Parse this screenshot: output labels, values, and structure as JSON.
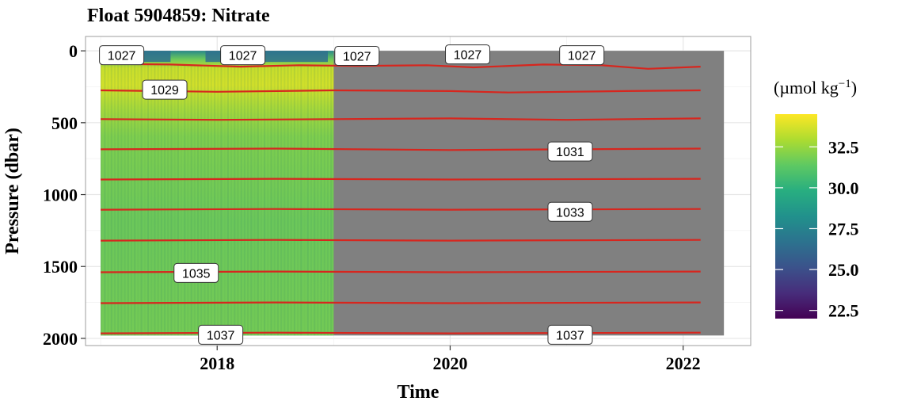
{
  "chart_data": {
    "type": "heatmap",
    "title": "Float 5904859: Nitrate",
    "xlabel": "Time",
    "ylabel": "Pressure (dbar)",
    "x_ticks": [
      2018,
      2020,
      2022
    ],
    "y_ticks": [
      0,
      500,
      1000,
      1500,
      2000
    ],
    "xlim": [
      2016.87,
      2022.58
    ],
    "ylim_reversed": [
      -100,
      2050
    ],
    "grid": true,
    "data_extent": {
      "measured_time_range": [
        2017.0,
        2019.0
      ],
      "profile_time_range": [
        2017.0,
        2022.35
      ],
      "pressure_range": [
        0,
        1980
      ]
    },
    "missing_value_color": "#808080",
    "colorbar": {
      "title": "(µmol kg",
      "title_superscript": "−1",
      "title_close": ")",
      "palette": "viridis",
      "limits": [
        22.0,
        34.5
      ],
      "ticks": [
        "32.5",
        "30.0",
        "27.5",
        "25.0",
        "22.5"
      ],
      "tick_values": [
        32.5,
        30.0,
        27.5,
        25.0,
        22.5
      ]
    },
    "field_description": {
      "surface_min_layer": {
        "pressure_range": [
          0,
          80
        ],
        "value": 28.0
      },
      "upper_max_layer": {
        "pressure_range": [
          150,
          400
        ],
        "value": 33.5
      },
      "deep_layer": {
        "pressure_range": [
          400,
          1980
        ],
        "value": 31.0
      }
    },
    "density_contour_color": "#d7261e",
    "density_contours": [
      {
        "level": "1027",
        "pressure": [
          {
            "t": 2017.0,
            "p": 90
          },
          {
            "t": 2017.6,
            "p": 95
          },
          {
            "t": 2018.2,
            "p": 110
          },
          {
            "t": 2018.7,
            "p": 100
          },
          {
            "t": 2019.2,
            "p": 105
          },
          {
            "t": 2019.8,
            "p": 100
          },
          {
            "t": 2020.2,
            "p": 115
          },
          {
            "t": 2020.8,
            "p": 95
          },
          {
            "t": 2021.3,
            "p": 100
          },
          {
            "t": 2021.7,
            "p": 125
          },
          {
            "t": 2022.15,
            "p": 110
          }
        ]
      },
      {
        "level": "1029",
        "pressure": [
          {
            "t": 2017.0,
            "p": 275
          },
          {
            "t": 2018.0,
            "p": 285
          },
          {
            "t": 2019.0,
            "p": 275
          },
          {
            "t": 2020.0,
            "p": 280
          },
          {
            "t": 2020.5,
            "p": 290
          },
          {
            "t": 2021.5,
            "p": 280
          },
          {
            "t": 2022.15,
            "p": 275
          }
        ]
      },
      {
        "level": "",
        "pressure": [
          {
            "t": 2017.0,
            "p": 475
          },
          {
            "t": 2018.0,
            "p": 480
          },
          {
            "t": 2019.0,
            "p": 475
          },
          {
            "t": 2020.0,
            "p": 470
          },
          {
            "t": 2021.0,
            "p": 480
          },
          {
            "t": 2022.15,
            "p": 470
          }
        ]
      },
      {
        "level": "1031",
        "pressure": [
          {
            "t": 2017.0,
            "p": 685
          },
          {
            "t": 2018.5,
            "p": 680
          },
          {
            "t": 2020.0,
            "p": 690
          },
          {
            "t": 2021.0,
            "p": 685
          },
          {
            "t": 2022.15,
            "p": 680
          }
        ]
      },
      {
        "level": "",
        "pressure": [
          {
            "t": 2017.0,
            "p": 895
          },
          {
            "t": 2018.5,
            "p": 890
          },
          {
            "t": 2020.0,
            "p": 895
          },
          {
            "t": 2022.15,
            "p": 890
          }
        ]
      },
      {
        "level": "1033",
        "pressure": [
          {
            "t": 2017.0,
            "p": 1105
          },
          {
            "t": 2018.5,
            "p": 1100
          },
          {
            "t": 2020.0,
            "p": 1105
          },
          {
            "t": 2022.15,
            "p": 1100
          }
        ]
      },
      {
        "level": "",
        "pressure": [
          {
            "t": 2017.0,
            "p": 1320
          },
          {
            "t": 2018.5,
            "p": 1315
          },
          {
            "t": 2020.0,
            "p": 1320
          },
          {
            "t": 2022.15,
            "p": 1315
          }
        ]
      },
      {
        "level": "1035",
        "pressure": [
          {
            "t": 2017.0,
            "p": 1540
          },
          {
            "t": 2018.5,
            "p": 1535
          },
          {
            "t": 2020.0,
            "p": 1540
          },
          {
            "t": 2022.15,
            "p": 1535
          }
        ]
      },
      {
        "level": "",
        "pressure": [
          {
            "t": 2017.0,
            "p": 1755
          },
          {
            "t": 2018.5,
            "p": 1750
          },
          {
            "t": 2020.0,
            "p": 1755
          },
          {
            "t": 2022.15,
            "p": 1750
          }
        ]
      },
      {
        "level": "1037",
        "pressure": [
          {
            "t": 2017.0,
            "p": 1965
          },
          {
            "t": 2018.5,
            "p": 1960
          },
          {
            "t": 2020.0,
            "p": 1965
          },
          {
            "t": 2022.15,
            "p": 1960
          }
        ]
      }
    ],
    "contour_labels": [
      {
        "text": "1027",
        "t": 2017.18,
        "p": 30
      },
      {
        "text": "1027",
        "t": 2018.22,
        "p": 30
      },
      {
        "text": "1027",
        "t": 2019.2,
        "p": 35
      },
      {
        "text": "1027",
        "t": 2020.15,
        "p": 25
      },
      {
        "text": "1027",
        "t": 2021.13,
        "p": 30
      },
      {
        "text": "1029",
        "t": 2017.55,
        "p": 270
      },
      {
        "text": "1031",
        "t": 2021.03,
        "p": 700
      },
      {
        "text": "1033",
        "t": 2021.03,
        "p": 1120
      },
      {
        "text": "1035",
        "t": 2017.82,
        "p": 1545
      },
      {
        "text": "1037",
        "t": 2018.03,
        "p": 1975
      },
      {
        "text": "1037",
        "t": 2021.03,
        "p": 1975
      }
    ]
  }
}
